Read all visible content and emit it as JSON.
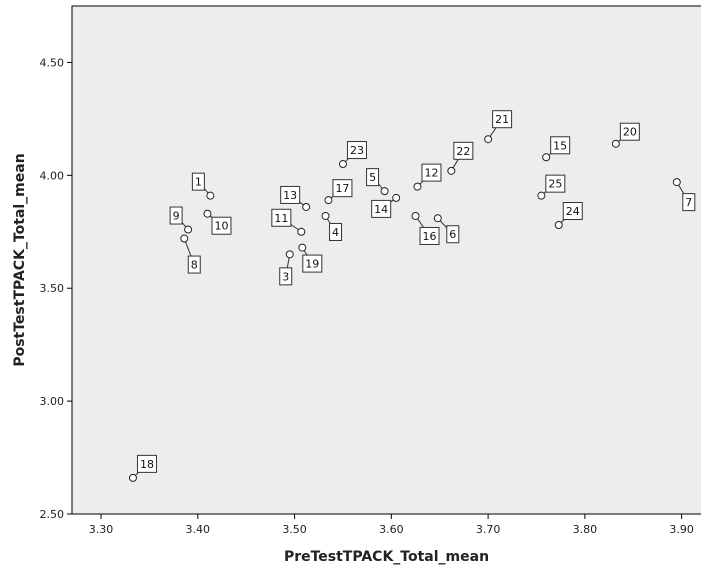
{
  "chart_data": {
    "type": "scatter",
    "xlabel": "PreTestTPACK_Total_mean",
    "ylabel": "PostTestTPACK_Total_mean",
    "xlim": [
      3.27,
      3.92
    ],
    "ylim": [
      2.5,
      4.75
    ],
    "x_ticks": [
      "3.30",
      "3.40",
      "3.50",
      "3.60",
      "3.70",
      "3.80",
      "3.90"
    ],
    "y_ticks": [
      "2.50",
      "3.00",
      "3.50",
      "4.00",
      "4.50"
    ],
    "grid": false,
    "points": [
      {
        "label": "1",
        "x": 3.413,
        "y": 3.91
      },
      {
        "label": "3",
        "x": 3.495,
        "y": 3.65
      },
      {
        "label": "4",
        "x": 3.532,
        "y": 3.82
      },
      {
        "label": "5",
        "x": 3.593,
        "y": 3.93
      },
      {
        "label": "6",
        "x": 3.648,
        "y": 3.81
      },
      {
        "label": "7",
        "x": 3.895,
        "y": 3.97
      },
      {
        "label": "8",
        "x": 3.386,
        "y": 3.72
      },
      {
        "label": "9",
        "x": 3.39,
        "y": 3.76
      },
      {
        "label": "10",
        "x": 3.41,
        "y": 3.83
      },
      {
        "label": "11",
        "x": 3.507,
        "y": 3.75
      },
      {
        "label": "12",
        "x": 3.627,
        "y": 3.95
      },
      {
        "label": "13",
        "x": 3.512,
        "y": 3.86
      },
      {
        "label": "14",
        "x": 3.605,
        "y": 3.9
      },
      {
        "label": "15",
        "x": 3.76,
        "y": 4.08
      },
      {
        "label": "16",
        "x": 3.625,
        "y": 3.82
      },
      {
        "label": "17",
        "x": 3.535,
        "y": 3.89
      },
      {
        "label": "18",
        "x": 3.333,
        "y": 2.66
      },
      {
        "label": "19",
        "x": 3.508,
        "y": 3.68
      },
      {
        "label": "20",
        "x": 3.832,
        "y": 4.14
      },
      {
        "label": "21",
        "x": 3.7,
        "y": 4.16
      },
      {
        "label": "22",
        "x": 3.662,
        "y": 4.02
      },
      {
        "label": "23",
        "x": 3.55,
        "y": 4.05
      },
      {
        "label": "24",
        "x": 3.773,
        "y": 3.78
      },
      {
        "label": "25",
        "x": 3.755,
        "y": 3.91
      }
    ]
  }
}
